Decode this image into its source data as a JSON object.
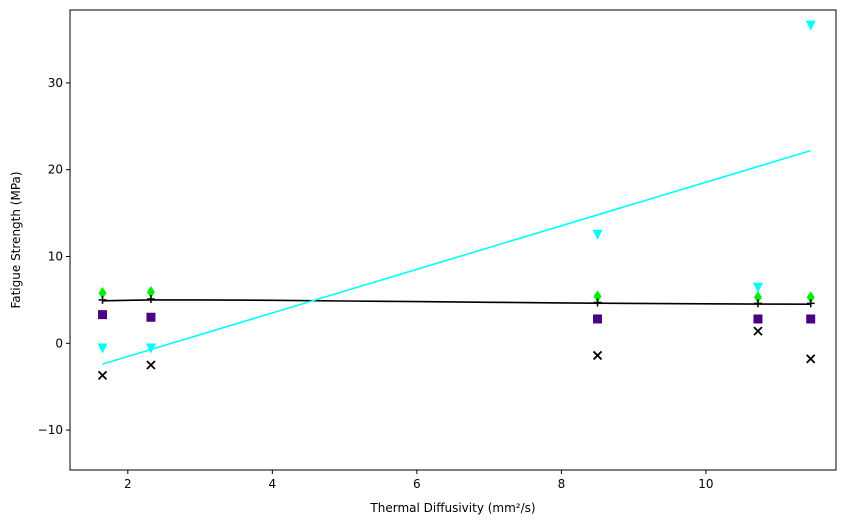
{
  "chart_data": {
    "type": "scatter",
    "title": "",
    "xlabel": "Thermal Diffusivity (mm²/s)",
    "ylabel": "Fatigue Strength (MPa)",
    "xlim": [
      1.2,
      11.8
    ],
    "ylim": [
      -14.6,
      38.4
    ],
    "xticks": [
      2,
      4,
      6,
      8,
      10
    ],
    "yticks": [
      -10,
      0,
      10,
      20,
      30
    ],
    "grid": false,
    "series": [
      {
        "marker": "diamond",
        "color": "#00ee00",
        "x": [
          1.65,
          2.32,
          8.5,
          10.72,
          11.45
        ],
        "y": [
          5.8,
          5.9,
          5.4,
          5.3,
          5.3
        ]
      },
      {
        "marker": "plus",
        "color": "#000000",
        "x": [
          1.65,
          2.32,
          8.5,
          10.72,
          11.45
        ],
        "y": [
          5.0,
          5.1,
          4.7,
          4.6,
          4.6
        ]
      },
      {
        "marker": "square",
        "color": "#4b0082",
        "x": [
          1.65,
          2.32,
          8.5,
          10.72,
          11.45
        ],
        "y": [
          3.3,
          3.0,
          2.8,
          2.8,
          2.8
        ]
      },
      {
        "marker": "triangle-down",
        "color": "#00ffff",
        "x": [
          1.65,
          2.32,
          8.5,
          10.72,
          11.45
        ],
        "y": [
          -0.6,
          -0.6,
          12.5,
          6.4,
          36.6
        ]
      },
      {
        "marker": "x",
        "color": "#000000",
        "x": [
          1.65,
          2.32,
          8.5,
          10.72,
          11.45
        ],
        "y": [
          -3.7,
          -2.5,
          -1.4,
          1.4,
          -1.8
        ]
      }
    ],
    "fit_lines": [
      {
        "color": "#000000",
        "x": [
          1.65,
          2.32,
          3.0,
          4.0,
          5.0,
          6.0,
          7.0,
          8.0,
          8.5,
          9.0,
          10.0,
          10.72,
          11.45
        ],
        "y": [
          4.9,
          5.0,
          5.0,
          4.95,
          4.87,
          4.8,
          4.72,
          4.65,
          4.62,
          4.6,
          4.55,
          4.52,
          4.5
        ]
      },
      {
        "color": "#00ffff",
        "x": [
          1.65,
          11.45
        ],
        "y": [
          -2.4,
          22.2
        ]
      }
    ]
  }
}
